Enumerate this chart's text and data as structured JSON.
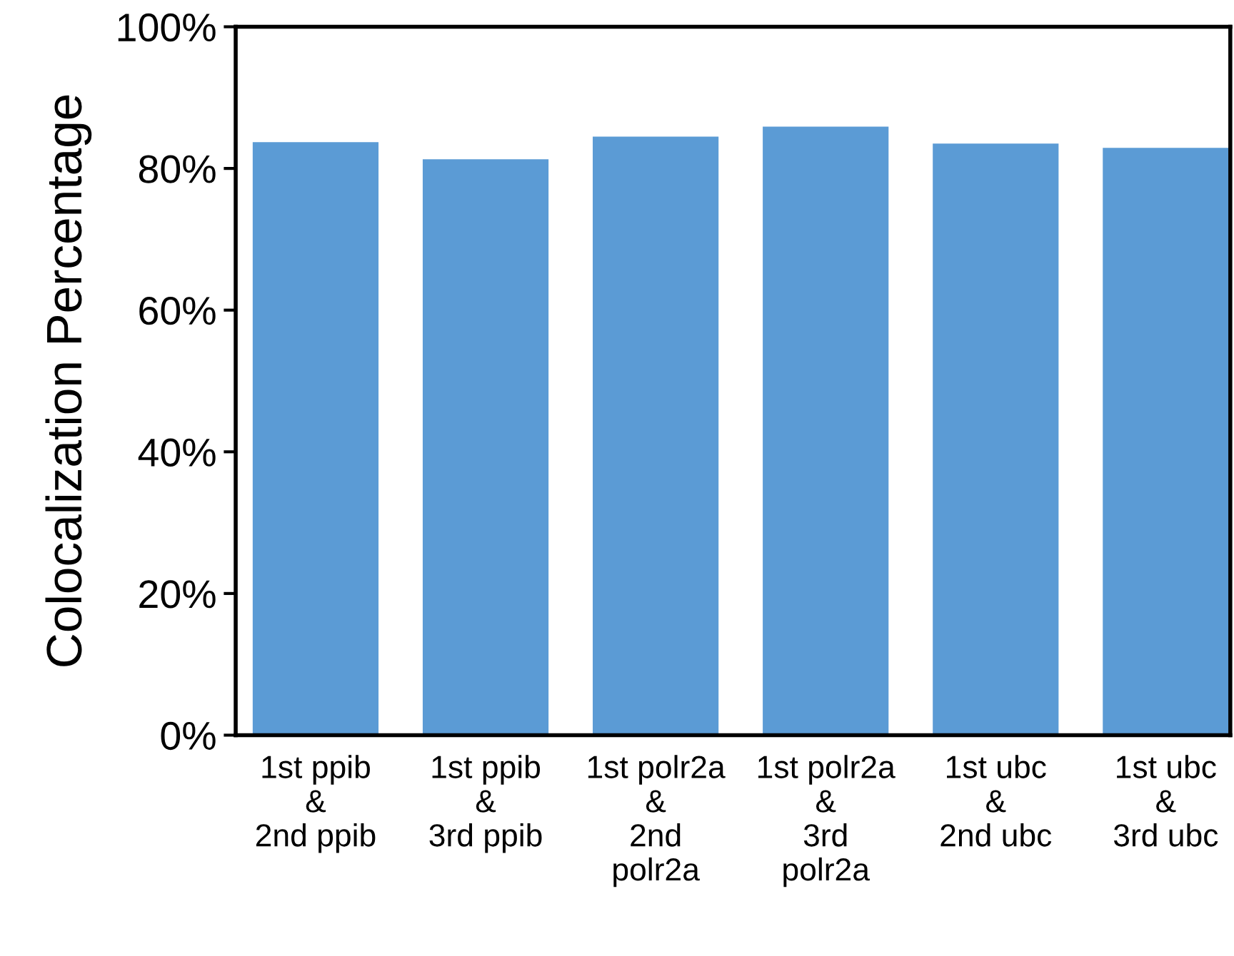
{
  "chart_data": {
    "type": "bar",
    "ylabel": "Colocalization Percentage",
    "categories": [
      "1st ppib\n&\n2nd ppib",
      "1st ppib\n&\n3rd ppib",
      "1st polr2a\n&\n2nd\npolr2a",
      "1st polr2a\n&\n3rd\npolr2a",
      "1st ubc\n&\n2nd ubc",
      "1st ubc\n&\n3rd ubc"
    ],
    "values": [
      83.7,
      81.3,
      84.5,
      85.9,
      83.5,
      82.9
    ],
    "color": "#5b9bd5",
    "ylim": [
      0,
      100
    ],
    "yticks": [
      {
        "value": 0,
        "label": "0%"
      },
      {
        "value": 20,
        "label": "20%"
      },
      {
        "value": 40,
        "label": "40%"
      },
      {
        "value": 60,
        "label": "60%"
      },
      {
        "value": 80,
        "label": "80%"
      },
      {
        "value": 100,
        "label": "100%"
      }
    ],
    "grid": false
  }
}
